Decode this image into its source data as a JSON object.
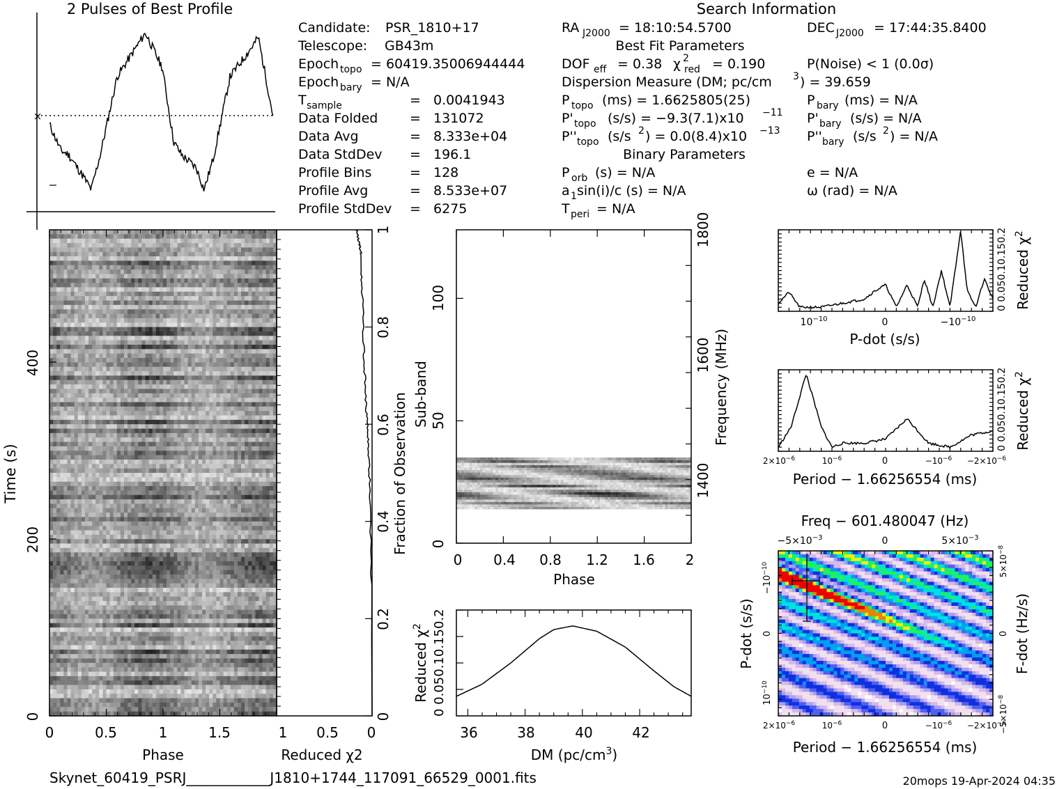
{
  "header": {
    "profile_title": "2 Pulses of Best Profile",
    "search_title": "Search Information",
    "best_fit_title": "Best Fit Parameters",
    "binary_title": "Binary Parameters"
  },
  "search_info": {
    "candidate": {
      "label": "Candidate:",
      "value": "PSR_1810+17"
    },
    "telescope": {
      "label": "Telescope:",
      "value": "GB43m"
    },
    "epoch_topo": {
      "label": "Epoch",
      "sub": "topo",
      "value": "= 60419.35006944444"
    },
    "epoch_bary": {
      "label": "Epoch",
      "sub": "bary",
      "value": "= N/A"
    },
    "table": [
      {
        "label": "T",
        "sub": "sample",
        "eq": "=",
        "value": "0.0041943"
      },
      {
        "label": "Data Folded",
        "sub": "",
        "eq": "=",
        "value": "131072"
      },
      {
        "label": "Data Avg",
        "sub": "",
        "eq": "=",
        "value": "8.333e+04"
      },
      {
        "label": "Data StdDev",
        "sub": "",
        "eq": "=",
        "value": "196.1"
      },
      {
        "label": "Profile Bins",
        "sub": "",
        "eq": "=",
        "value": "128"
      },
      {
        "label": "Profile Avg",
        "sub": "",
        "eq": "=",
        "value": "8.533e+07"
      },
      {
        "label": "Profile StdDev",
        "sub": "",
        "eq": "=",
        "value": "6275"
      }
    ],
    "ra": {
      "label": "RA",
      "sub": "J2000",
      "value": "= 18:10:54.5700"
    },
    "dec": {
      "label": "DEC",
      "sub": "J2000",
      "value": "= 17:44:35.8400"
    }
  },
  "best_fit": {
    "dof_label": "DOF",
    "dof_sub": "eff",
    "dof_value": "= 0.38",
    "chi_label": "χ",
    "chi_sup": "2",
    "chi_sub": "red",
    "chi_value": "= 0.190",
    "pnoise": "P(Noise) < 1   (0.0σ)",
    "dm_text": "Dispersion Measure (DM; pc/cm",
    "dm_sup": "3",
    "dm_value": ") = 39.659",
    "p_topo": {
      "label": "P",
      "sub": "topo",
      "value": "(ms) =  1.6625805(25)"
    },
    "p_bary": {
      "label": "P",
      "sub": "bary",
      "value": "(ms) = N/A"
    },
    "pd_topo": {
      "label": "P'",
      "sub": "topo",
      "value": "(s/s) = −9.3(7.1)x10",
      "sup": "−11"
    },
    "pd_bary": {
      "label": "P'",
      "sub": "bary",
      "value": "(s/s) = N/A"
    },
    "pdd_topo": {
      "label": "P''",
      "sub": "topo",
      "value": "(s/s",
      "sup": "2",
      "value2": ") = 0.0(8.4)x10",
      "sup2": "−13"
    },
    "pdd_bary": {
      "label": "P''",
      "sub": "bary",
      "value": "(s/s",
      "sup": "2",
      "value2": ") = N/A"
    }
  },
  "binary": {
    "porb": {
      "label": "P",
      "sub": "orb",
      "value": "(s) = N/A"
    },
    "a1": {
      "label": "a",
      "sub": "1",
      "value": "sin(i)/c (s) = N/A"
    },
    "tperi": {
      "label": "T",
      "sub": "peri",
      "value": "= N/A"
    },
    "e": "e = N/A",
    "omega": "ω (rad) = N/A"
  },
  "footer": {
    "filename": "Skynet_60419_PSRJ____________J1810+1744_117091_66529_0001.fits",
    "stamp": "20mops 19-Apr-2024 04:35"
  },
  "colors": {
    "ink": "#000000",
    "background": "#ffffff"
  },
  "chart_data": [
    {
      "type": "line",
      "title": "2 Pulses of Best Profile",
      "xlim": [
        0,
        2
      ],
      "ylim": [
        -1.08,
        1.02
      ],
      "reference_line": {
        "y": 0,
        "style": "dotted"
      },
      "x": [
        0.0,
        0.1,
        0.17,
        0.3,
        0.37,
        0.45,
        0.6,
        0.8,
        0.85,
        1.0,
        1.1,
        1.17,
        1.3,
        1.37,
        1.45,
        1.6,
        1.8,
        1.85,
        1.98
      ],
      "y": [
        -0.1,
        -0.4,
        -0.45,
        -0.7,
        -0.85,
        -0.45,
        0.45,
        0.85,
        0.95,
        0.55,
        -0.3,
        -0.45,
        -0.6,
        -0.85,
        -0.5,
        0.45,
        0.8,
        0.9,
        0.0
      ]
    },
    {
      "type": "heatmap",
      "title": "",
      "xlabel": "Phase",
      "ylabel": "Time (s)",
      "xlim": [
        0,
        2
      ],
      "ylim": [
        0,
        550
      ],
      "x_ticks": [
        "0",
        "0.5",
        "1",
        "1.5"
      ],
      "y_ticks": [
        "0",
        "200",
        "400"
      ],
      "colormap": "grayscale"
    },
    {
      "type": "line",
      "xlabel": "Reduced χ2",
      "ylabel": "Fraction of Observation",
      "x_ticks": [
        "1",
        "0.5",
        "0"
      ],
      "y_ticks": [
        "0",
        "0.2",
        "0.4",
        "0.6",
        "0.8",
        "1"
      ],
      "xlim": [
        1,
        0
      ],
      "ylim": [
        0,
        1
      ],
      "x": [
        0.0,
        0.004,
        0.006,
        0.012,
        0.02,
        0.04,
        0.07,
        0.09,
        0.1,
        0.11,
        0.12,
        0.12,
        0.14,
        0.17
      ],
      "y": [
        0.0,
        0.15,
        0.25,
        0.35,
        0.45,
        0.55,
        0.65,
        0.75,
        0.82,
        0.88,
        0.92,
        0.95,
        0.97,
        1.0
      ]
    },
    {
      "type": "heatmap",
      "xlabel": "Phase",
      "ylabel": "Sub-band",
      "ylabel_right": "Frequency (MHz)",
      "xlim": [
        0,
        2
      ],
      "ylim": [
        0,
        128
      ],
      "x_ticks": [
        "0",
        "0.4",
        "0.8",
        "1.2",
        "1.6",
        "2"
      ],
      "y_ticks": [
        "0",
        "50",
        "100"
      ],
      "y_right_ticks": [
        "1400",
        "1600",
        "1800"
      ],
      "filled_subbands": [
        14,
        35
      ],
      "colormap": "grayscale"
    },
    {
      "type": "line",
      "xlabel": "DM (pc/cm3)",
      "ylabel": "Reduced χ2",
      "xlim": [
        35.6,
        43.8
      ],
      "ylim": [
        0,
        0.2
      ],
      "x_ticks": [
        "36",
        "38",
        "40",
        "42"
      ],
      "y_ticks": [
        "0",
        "0.05",
        "0.1",
        "0.15",
        "0.2"
      ],
      "x": [
        35.6,
        36.5,
        37.5,
        38.5,
        39.0,
        39.659,
        40.5,
        41.5,
        42.5,
        43.2,
        43.8
      ],
      "y": [
        0.037,
        0.06,
        0.1,
        0.146,
        0.163,
        0.17,
        0.16,
        0.13,
        0.085,
        0.055,
        0.037
      ]
    },
    {
      "type": "line",
      "xlabel": "P-dot (s/s)",
      "ylabel": "Reduced χ2",
      "x_ticks": [
        "10−10",
        "0",
        "−10−10"
      ],
      "y_ticks": [
        "0",
        "0.05",
        "0.1",
        "0.15",
        "0.2"
      ],
      "xlim": [
        0,
        1
      ],
      "ylim": [
        0,
        0.2
      ],
      "x": [
        0.0,
        0.05,
        0.1,
        0.2,
        0.3,
        0.4,
        0.45,
        0.5,
        0.55,
        0.6,
        0.65,
        0.68,
        0.72,
        0.76,
        0.8,
        0.85,
        0.88,
        0.92,
        0.96,
        1.0
      ],
      "y": [
        0.02,
        0.047,
        0.01,
        0.01,
        0.02,
        0.03,
        0.05,
        0.065,
        0.01,
        0.065,
        0.01,
        0.08,
        0.01,
        0.1,
        0.01,
        0.2,
        0.05,
        0.01,
        0.08,
        0.03
      ]
    },
    {
      "type": "line",
      "xlabel": "Period − 1.66256554 (ms)",
      "ylabel": "Reduced χ2",
      "x_ticks": [
        "2×10−6",
        "10−6",
        "0",
        "−10−6",
        "−2×10−6"
      ],
      "y_ticks": [
        "0",
        "0.05",
        "0.1",
        "0.15",
        "0.2"
      ],
      "xlim": [
        0,
        1
      ],
      "ylim": [
        0,
        0.2
      ],
      "x": [
        0.0,
        0.06,
        0.13,
        0.2,
        0.25,
        0.3,
        0.4,
        0.5,
        0.6,
        0.7,
        0.8,
        0.9,
        1.0
      ],
      "y": [
        0.01,
        0.06,
        0.19,
        0.06,
        0.01,
        0.02,
        0.02,
        0.03,
        0.08,
        0.02,
        0.01,
        0.04,
        0.05
      ]
    },
    {
      "type": "heatmap",
      "title": "Freq − 601.480047 (Hz)",
      "xlabel": "Period − 1.66256554 (ms)",
      "ylabel": "P-dot (s/s)",
      "ylabel_right": "F-dot (Hz/s)",
      "x_ticks": [
        "2×10−6",
        "10−6",
        "0",
        "−10−6",
        "−2×10−6"
      ],
      "top_ticks": [
        "−5×10−3",
        "0",
        "5×10−3"
      ],
      "y_ticks": [
        "10−10",
        "0",
        "−10−10"
      ],
      "y_right_ticks": [
        "−5×10−8",
        "0",
        "5×10−8"
      ],
      "colormap": "rainbow"
    }
  ]
}
